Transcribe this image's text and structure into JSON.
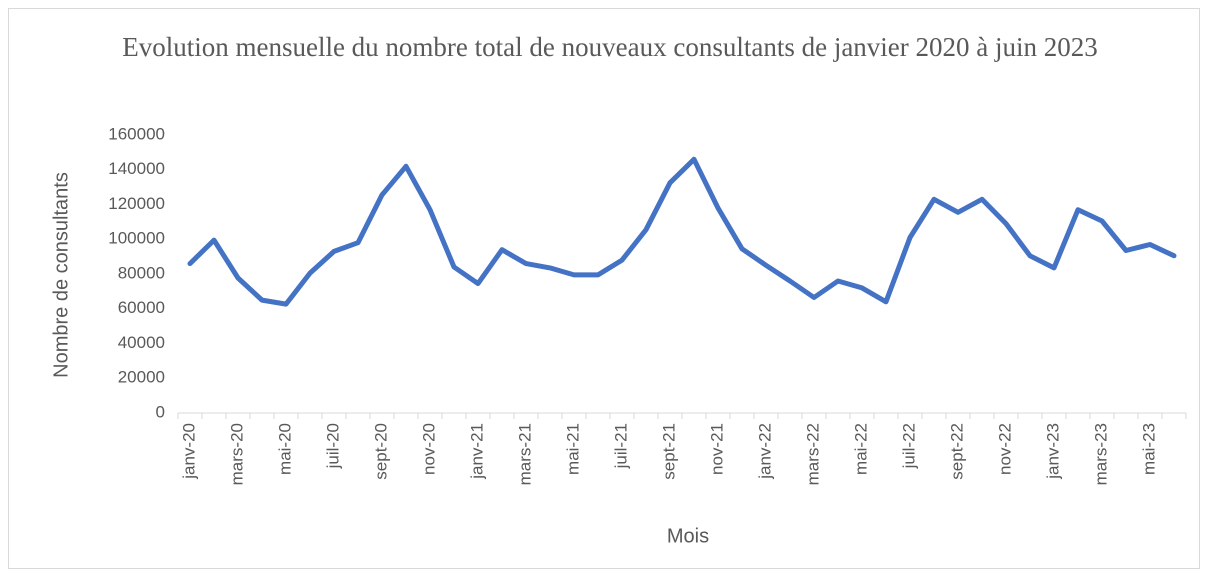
{
  "chart_data": {
    "type": "line",
    "title": "Evolution mensuelle du nombre total de nouveaux consultants de janvier 2020 à juin 2023",
    "x_label": "Mois",
    "y_label": "Nombre de consultants",
    "categories": [
      "janv-20",
      null,
      "mars-20",
      null,
      "mai-20",
      null,
      "juil-20",
      null,
      "sept-20",
      null,
      "nov-20",
      null,
      "janv-21",
      null,
      "mars-21",
      null,
      "mai-21",
      null,
      "juil-21",
      null,
      "sept-21",
      null,
      "nov-21",
      null,
      "janv-22",
      null,
      "mars-22",
      null,
      "mai-22",
      null,
      "juil-22",
      null,
      "sept-22",
      null,
      "nov-22",
      null,
      "janv-23",
      null,
      "mars-23",
      null,
      "mai-23",
      null
    ],
    "values": [
      86000,
      99500,
      77700,
      65000,
      62700,
      80500,
      93000,
      98000,
      125500,
      142000,
      117000,
      84000,
      74500,
      94000,
      86000,
      83500,
      79500,
      79500,
      88000,
      105500,
      132500,
      146000,
      118000,
      94500,
      85000,
      76000,
      66500,
      76000,
      72000,
      64000,
      101000,
      123000,
      115500,
      123000,
      109000,
      90500,
      83500,
      117000,
      110500,
      93500,
      97000,
      90500
    ],
    "color": "#4472c4",
    "ylim": [
      0,
      160000
    ],
    "yticks": [
      0,
      20000,
      40000,
      60000,
      80000,
      100000,
      120000,
      140000,
      160000
    ],
    "grid": false
  }
}
